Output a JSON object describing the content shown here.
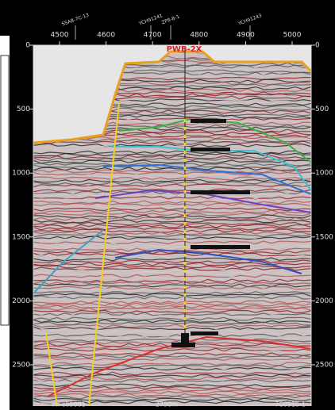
{
  "top_axis": {
    "ticks": [
      4500,
      4600,
      4700,
      4800,
      4900,
      5000
    ]
  },
  "left_axis": {
    "ticks": [
      0,
      500,
      1000,
      1500,
      2000,
      2500
    ]
  },
  "right_axis": {
    "ticks": [
      0,
      500,
      1000,
      1500,
      2000,
      2500
    ]
  },
  "well_labels": [
    "SSAB-7C-13",
    "YCH91241",
    "ZP8-B-1",
    "YCH91243"
  ],
  "well_name": "PWB-2X",
  "bottom_labels": [
    "ml-c09001",
    "2750m",
    "7C0910-1"
  ]
}
